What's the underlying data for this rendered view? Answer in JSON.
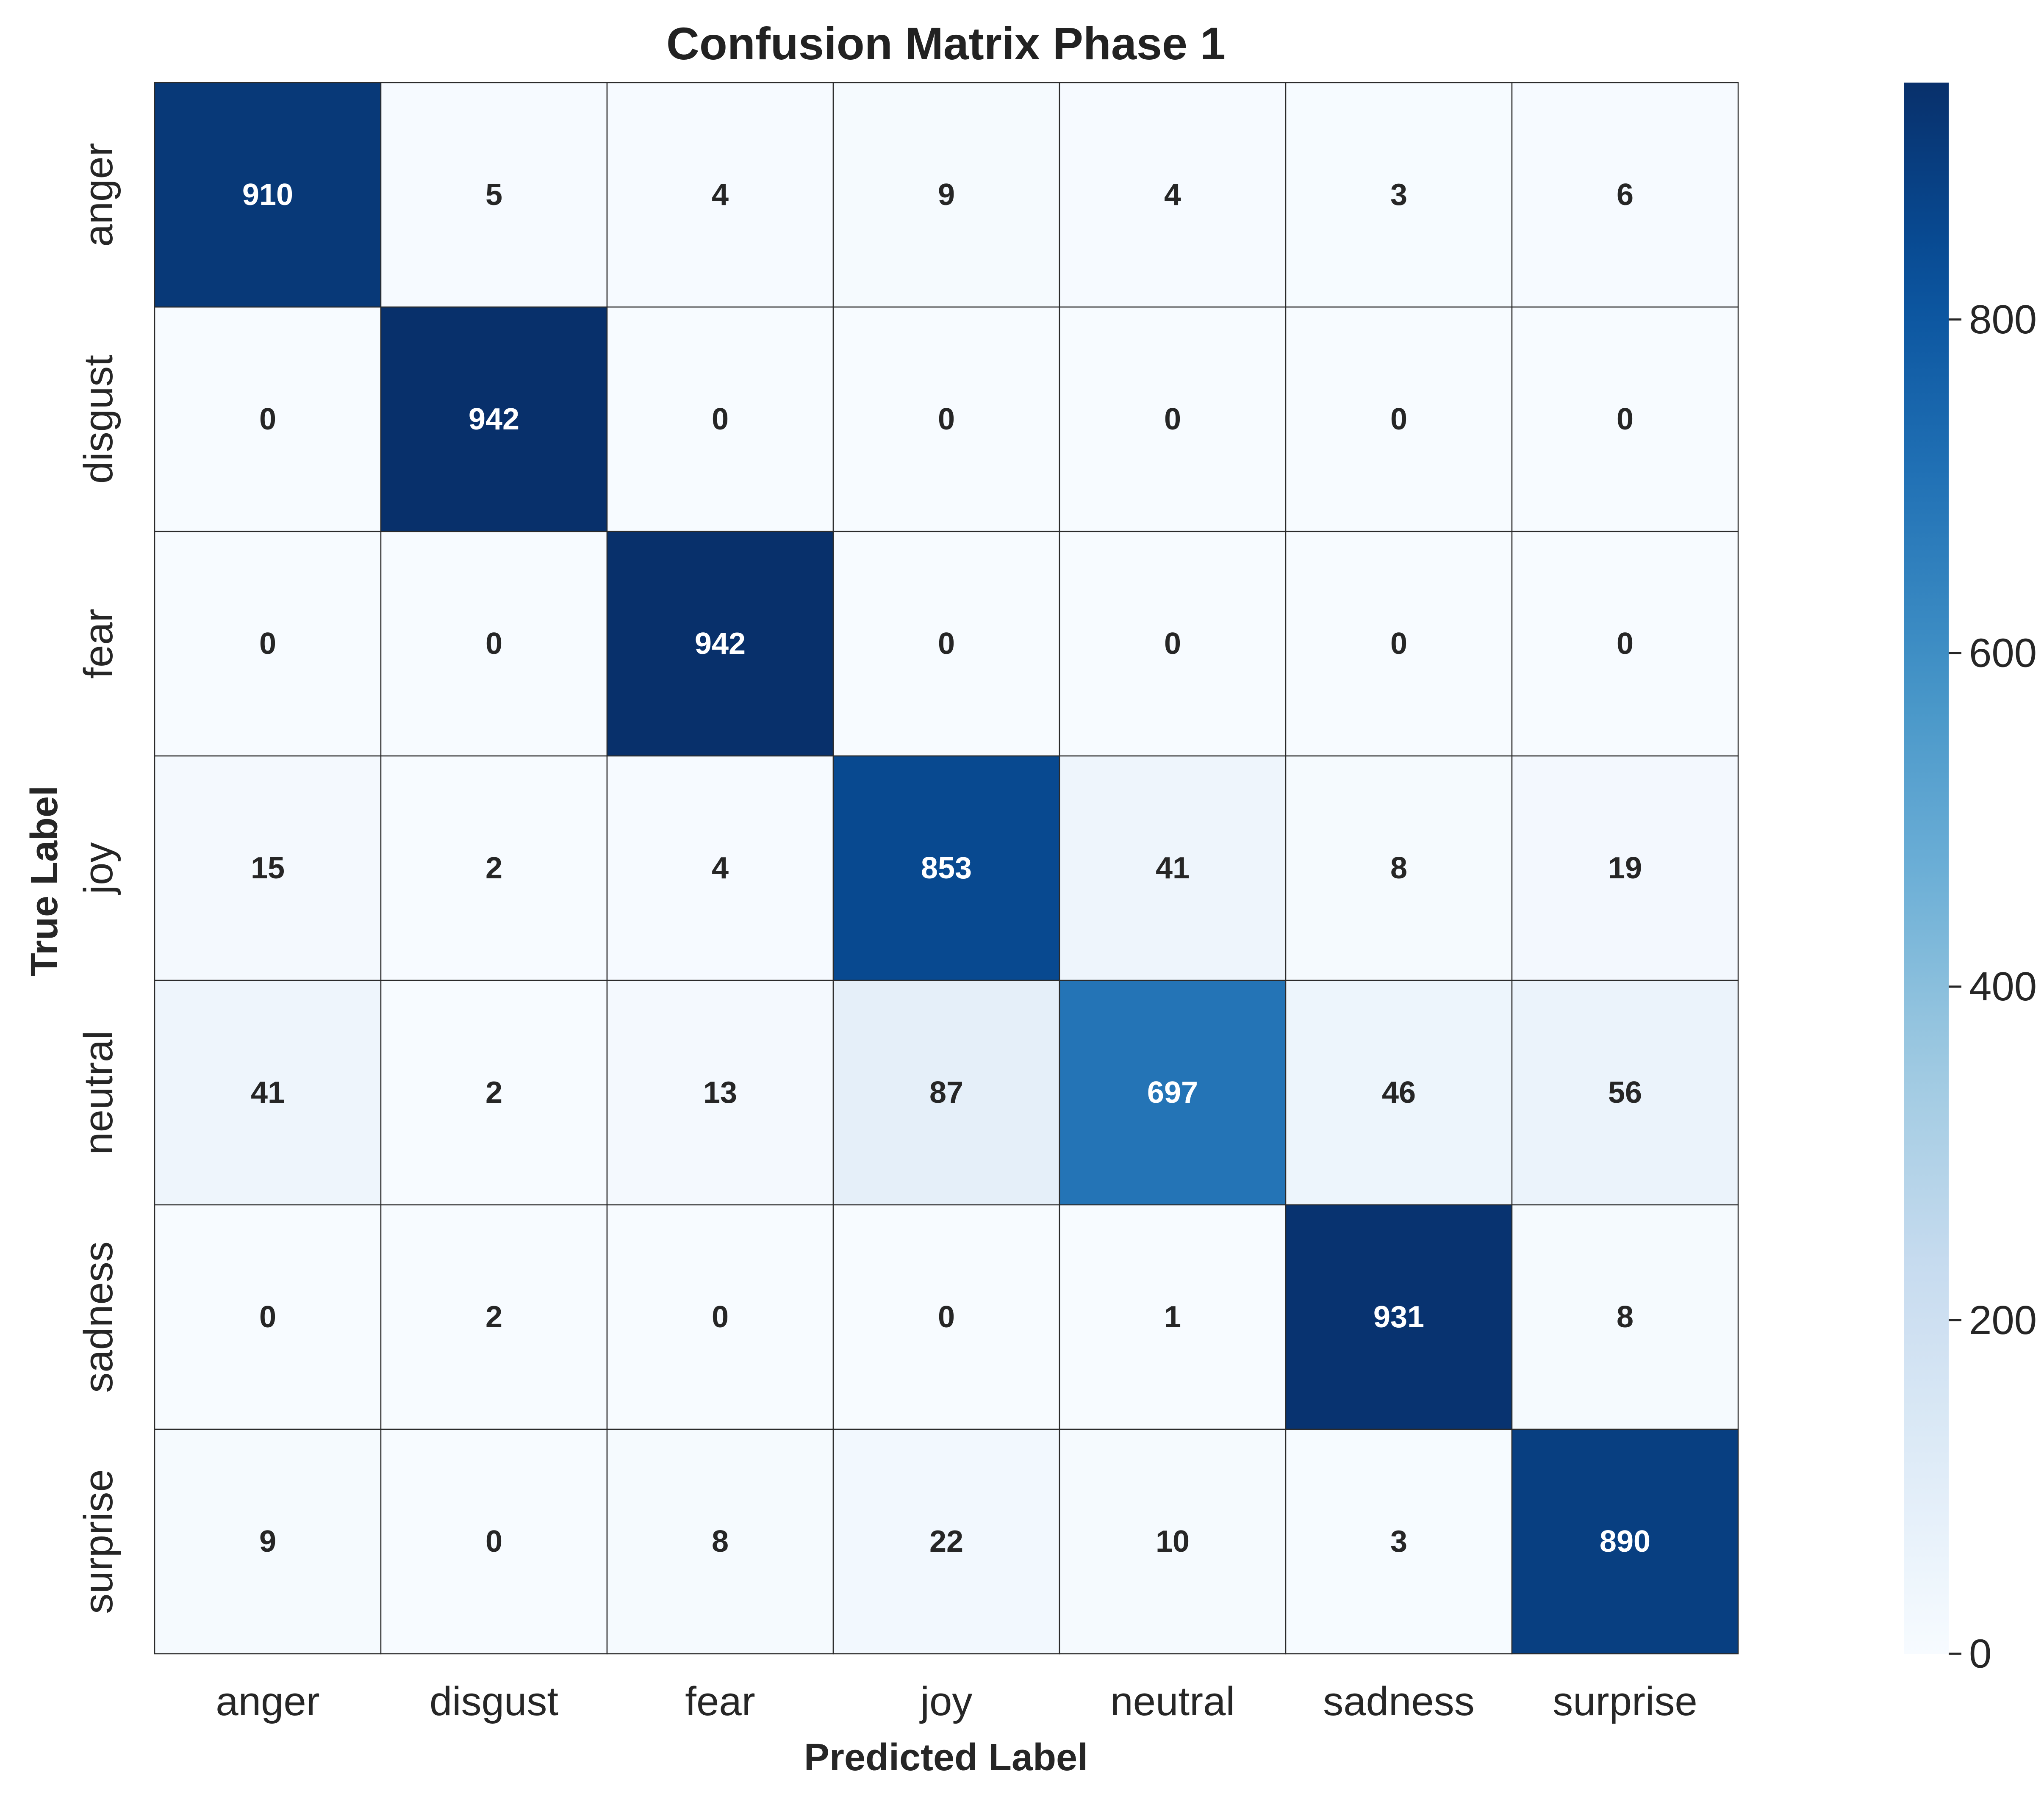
{
  "chart_data": {
    "type": "heatmap",
    "title": "Confusion Matrix Phase 1",
    "xlabel": "Predicted Label",
    "ylabel": "True Label",
    "x_categories": [
      "anger",
      "disgust",
      "fear",
      "joy",
      "neutral",
      "sadness",
      "surprise"
    ],
    "y_categories": [
      "anger",
      "disgust",
      "fear",
      "joy",
      "neutral",
      "sadness",
      "surprise"
    ],
    "values": [
      [
        910,
        5,
        4,
        9,
        4,
        3,
        6
      ],
      [
        0,
        942,
        0,
        0,
        0,
        0,
        0
      ],
      [
        0,
        0,
        942,
        0,
        0,
        0,
        0
      ],
      [
        15,
        2,
        4,
        853,
        41,
        8,
        19
      ],
      [
        41,
        2,
        13,
        87,
        697,
        46,
        56
      ],
      [
        0,
        2,
        0,
        0,
        1,
        931,
        8
      ],
      [
        9,
        0,
        8,
        22,
        10,
        3,
        890
      ]
    ],
    "colormap": "Blues",
    "colorbar": {
      "min": 0,
      "max": 942,
      "ticks": [
        0,
        200,
        400,
        600,
        800
      ],
      "tick_labels": [
        "0",
        "200",
        "400",
        "600",
        "800"
      ]
    }
  }
}
